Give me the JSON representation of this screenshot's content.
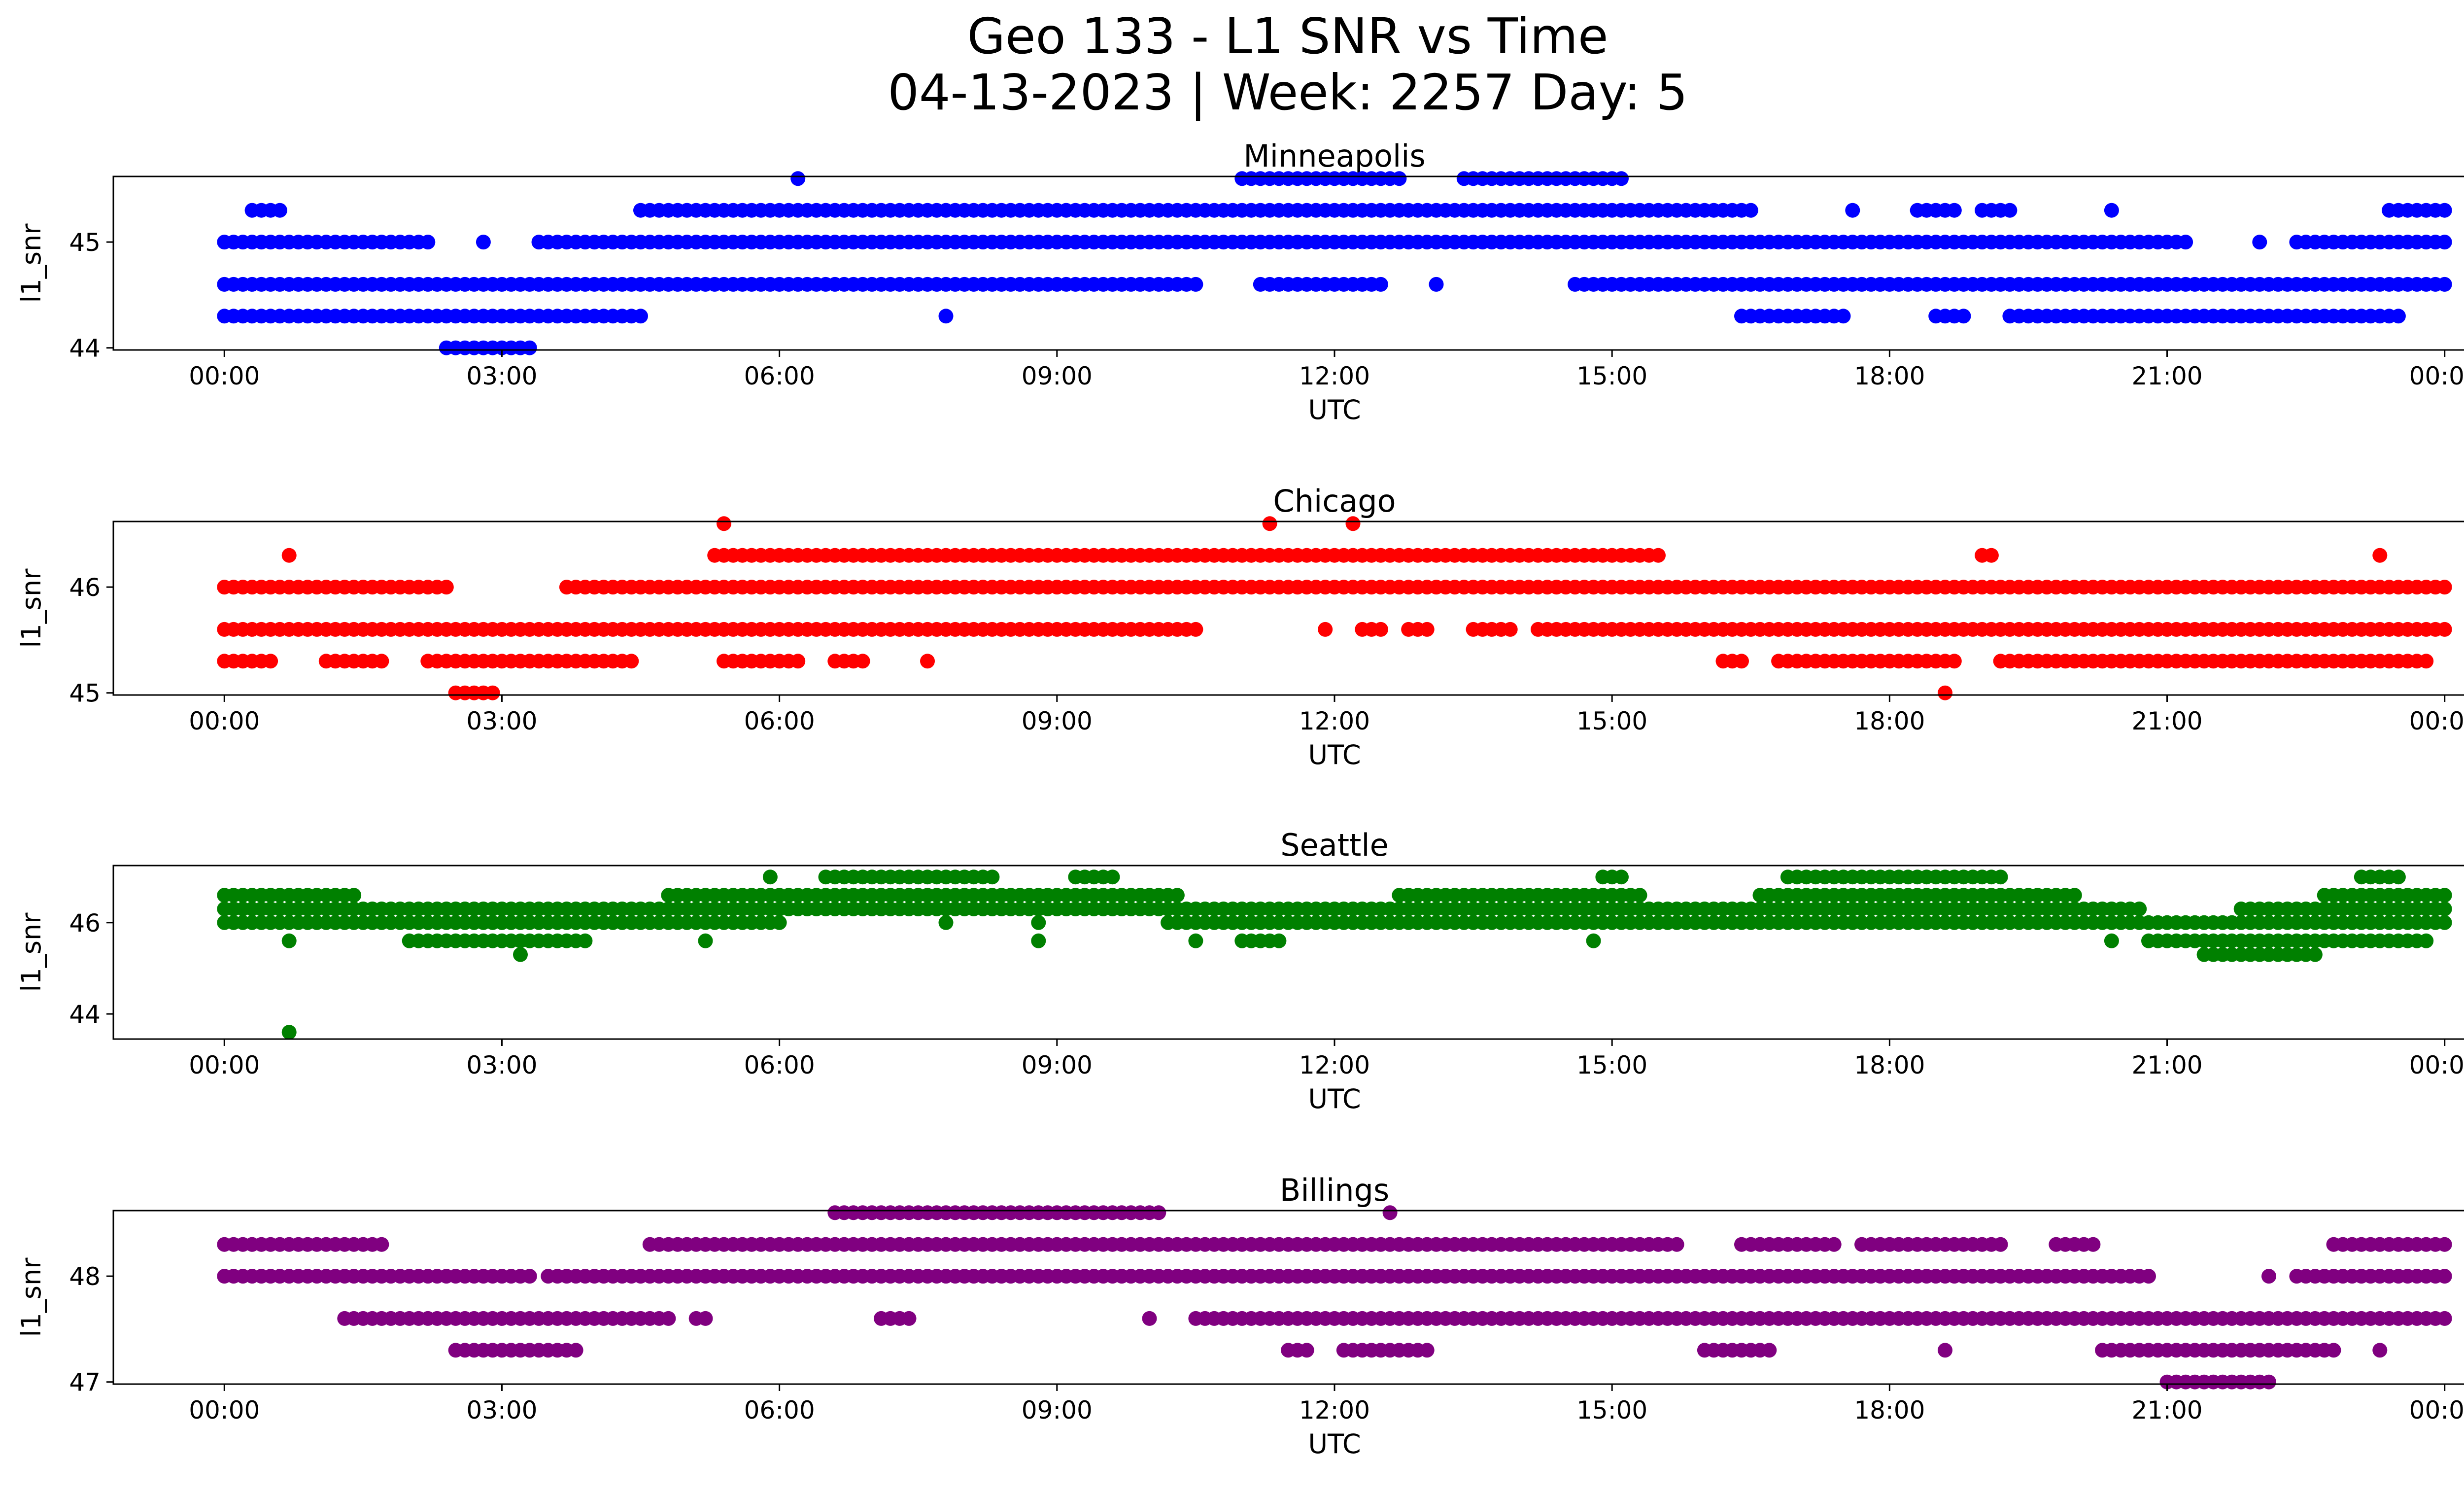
{
  "figure": {
    "title_line1": "Geo 133 - L1 SNR vs Time",
    "title_line2": "04-13-2023 | Week: 2257 Day: 5"
  },
  "chart_data": [
    {
      "type": "scatter",
      "title": "Minneapolis",
      "xlabel": "UTC",
      "ylabel": "l1_snr",
      "color": "#0000ff",
      "x_unit": "hours UTC",
      "xlim": [
        -1.2,
        25.2
      ],
      "xticks": [
        "00:00",
        "03:00",
        "06:00",
        "09:00",
        "12:00",
        "15:00",
        "18:00",
        "21:00",
        "00:00"
      ],
      "ylim": [
        43.98,
        45.62
      ],
      "yticks": [
        44,
        45
      ],
      "levels": [
        {
          "y": 44.0,
          "ranges": [
            [
              2.4,
              3.3
            ]
          ]
        },
        {
          "y": 44.3,
          "ranges": [
            [
              0.0,
              4.5
            ],
            [
              7.8,
              7.8
            ],
            [
              16.4,
              17.5
            ],
            [
              18.5,
              18.8
            ],
            [
              19.3,
              23.5
            ]
          ]
        },
        {
          "y": 44.6,
          "ranges": [
            [
              0.0,
              10.5
            ],
            [
              11.2,
              12.5
            ],
            [
              13.1,
              13.1
            ],
            [
              14.6,
              24.0
            ]
          ]
        },
        {
          "y": 45.0,
          "ranges": [
            [
              0.0,
              2.2
            ],
            [
              2.8,
              2.8
            ],
            [
              3.4,
              21.2
            ],
            [
              22.0,
              22.0
            ],
            [
              22.4,
              24.0
            ]
          ]
        },
        {
          "y": 45.3,
          "ranges": [
            [
              0.3,
              0.6
            ],
            [
              4.5,
              16.5
            ],
            [
              17.6,
              17.6
            ],
            [
              18.3,
              18.7
            ],
            [
              19.0,
              19.3
            ],
            [
              20.4,
              20.4
            ],
            [
              23.4,
              24.0
            ]
          ]
        },
        {
          "y": 45.6,
          "ranges": [
            [
              6.2,
              6.2
            ],
            [
              11.0,
              12.7
            ],
            [
              13.4,
              15.1
            ]
          ]
        }
      ]
    },
    {
      "type": "scatter",
      "title": "Chicago",
      "xlabel": "UTC",
      "ylabel": "l1_snr",
      "color": "#ff0000",
      "x_unit": "hours UTC",
      "xlim": [
        -1.2,
        25.2
      ],
      "xticks": [
        "00:00",
        "03:00",
        "06:00",
        "09:00",
        "12:00",
        "15:00",
        "18:00",
        "21:00",
        "00:00"
      ],
      "ylim": [
        44.98,
        46.62
      ],
      "yticks": [
        45,
        46
      ],
      "levels": [
        {
          "y": 45.0,
          "ranges": [
            [
              2.5,
              2.9
            ],
            [
              18.6,
              18.6
            ]
          ]
        },
        {
          "y": 45.3,
          "ranges": [
            [
              0.0,
              0.5
            ],
            [
              1.1,
              1.7
            ],
            [
              2.2,
              4.4
            ],
            [
              5.4,
              6.2
            ],
            [
              6.6,
              6.9
            ],
            [
              7.6,
              7.6
            ],
            [
              16.2,
              16.4
            ],
            [
              16.8,
              18.7
            ],
            [
              19.2,
              23.8
            ]
          ]
        },
        {
          "y": 45.6,
          "ranges": [
            [
              0.0,
              10.5
            ],
            [
              11.9,
              11.9
            ],
            [
              12.3,
              12.5
            ],
            [
              12.8,
              13.0
            ],
            [
              13.5,
              13.9
            ],
            [
              14.2,
              14.9
            ],
            [
              15.0,
              24.0
            ]
          ]
        },
        {
          "y": 46.0,
          "ranges": [
            [
              0.0,
              2.4
            ],
            [
              3.7,
              24.0
            ]
          ]
        },
        {
          "y": 46.3,
          "ranges": [
            [
              0.7,
              0.7
            ],
            [
              5.3,
              15.5
            ],
            [
              19.0,
              19.1
            ],
            [
              23.3,
              23.3
            ]
          ]
        },
        {
          "y": 46.6,
          "ranges": [
            [
              5.4,
              5.4
            ],
            [
              11.3,
              11.3
            ],
            [
              12.2,
              12.2
            ]
          ]
        }
      ]
    },
    {
      "type": "scatter",
      "title": "Seattle",
      "xlabel": "UTC",
      "ylabel": "l1_snr",
      "color": "#008000",
      "x_unit": "hours UTC",
      "xlim": [
        -1.2,
        25.2
      ],
      "xticks": [
        "00:00",
        "03:00",
        "06:00",
        "09:00",
        "12:00",
        "15:00",
        "18:00",
        "21:00",
        "00:00"
      ],
      "ylim": [
        43.45,
        47.25
      ],
      "yticks": [
        44,
        46
      ],
      "levels": [
        {
          "y": 43.6,
          "ranges": [
            [
              0.7,
              0.7
            ]
          ]
        },
        {
          "y": 45.3,
          "ranges": [
            [
              3.2,
              3.2
            ],
            [
              21.4,
              22.6
            ]
          ]
        },
        {
          "y": 45.6,
          "ranges": [
            [
              0.7,
              0.7
            ],
            [
              2.0,
              3.9
            ],
            [
              5.2,
              5.2
            ],
            [
              8.8,
              8.8
            ],
            [
              10.5,
              10.5
            ],
            [
              11.0,
              11.4
            ],
            [
              14.8,
              14.8
            ],
            [
              20.4,
              20.4
            ],
            [
              20.8,
              23.8
            ]
          ]
        },
        {
          "y": 46.0,
          "ranges": [
            [
              0.0,
              6.0
            ],
            [
              7.8,
              7.8
            ],
            [
              8.8,
              8.8
            ],
            [
              10.2,
              24.0
            ]
          ]
        },
        {
          "y": 46.3,
          "ranges": [
            [
              0.0,
              20.7
            ],
            [
              21.8,
              24.0
            ]
          ]
        },
        {
          "y": 46.6,
          "ranges": [
            [
              0.0,
              1.4
            ],
            [
              4.8,
              10.3
            ],
            [
              12.7,
              15.3
            ],
            [
              16.6,
              20.0
            ],
            [
              22.7,
              24.0
            ]
          ]
        },
        {
          "y": 47.0,
          "ranges": [
            [
              5.9,
              5.9
            ],
            [
              6.5,
              8.3
            ],
            [
              9.2,
              9.6
            ],
            [
              14.9,
              15.1
            ],
            [
              16.9,
              19.2
            ],
            [
              23.1,
              23.5
            ]
          ]
        }
      ]
    },
    {
      "type": "scatter",
      "title": "Billings",
      "xlabel": "UTC",
      "ylabel": "l1_snr",
      "color": "#800080",
      "x_unit": "hours UTC",
      "xlim": [
        -1.2,
        25.2
      ],
      "xticks": [
        "00:00",
        "03:00",
        "06:00",
        "09:00",
        "12:00",
        "15:00",
        "18:00",
        "21:00",
        "00:00"
      ],
      "ylim": [
        46.98,
        48.62
      ],
      "yticks": [
        47,
        48
      ],
      "levels": [
        {
          "y": 47.0,
          "ranges": [
            [
              21.0,
              22.1
            ]
          ]
        },
        {
          "y": 47.3,
          "ranges": [
            [
              2.5,
              3.8
            ],
            [
              11.5,
              11.7
            ],
            [
              12.1,
              13.0
            ],
            [
              16.0,
              16.7
            ],
            [
              18.6,
              18.6
            ],
            [
              20.3,
              22.8
            ],
            [
              23.3,
              23.3
            ]
          ]
        },
        {
          "y": 47.6,
          "ranges": [
            [
              1.3,
              4.8
            ],
            [
              5.1,
              5.2
            ],
            [
              7.1,
              7.4
            ],
            [
              10.0,
              10.0
            ],
            [
              10.5,
              24.0
            ]
          ]
        },
        {
          "y": 48.0,
          "ranges": [
            [
              0.0,
              3.3
            ],
            [
              3.5,
              20.8
            ],
            [
              22.1,
              22.1
            ],
            [
              22.4,
              24.0
            ]
          ]
        },
        {
          "y": 48.3,
          "ranges": [
            [
              0.0,
              1.7
            ],
            [
              4.6,
              15.7
            ],
            [
              16.4,
              17.4
            ],
            [
              17.7,
              19.2
            ],
            [
              19.8,
              20.2
            ],
            [
              22.8,
              24.0
            ]
          ]
        },
        {
          "y": 48.6,
          "ranges": [
            [
              6.6,
              10.1
            ],
            [
              12.6,
              12.6
            ]
          ]
        }
      ]
    }
  ]
}
